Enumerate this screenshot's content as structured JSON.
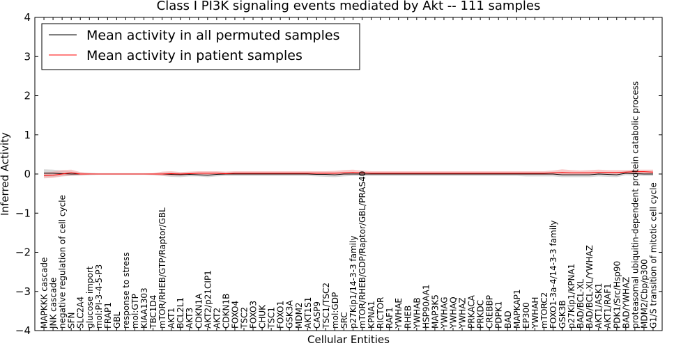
{
  "chart_data": {
    "type": "line",
    "title": "Class I PI3K signaling events mediated by Akt -- 111 samples",
    "xlabel": "Cellular Entities",
    "ylabel": "Inferred Activity",
    "ylim": [
      -4,
      4
    ],
    "yticks": [
      -4,
      -3,
      -2,
      -1,
      0,
      1,
      2,
      3,
      4
    ],
    "ytick_labels": [
      "−4",
      "−3",
      "−2",
      "−1",
      "0",
      "1",
      "2",
      "3",
      "4"
    ],
    "grid": false,
    "legend_position": "top-left",
    "categories": [
      "MAPKKK cascade",
      "JNK cascade",
      "negative regulation of cell cycle",
      "SFN",
      "SLC2A4",
      "glucose import",
      "mol:PI-3-4-5-P3",
      "FRAP1",
      "GBL",
      "response to stress",
      "mol:GTP",
      "KIAA1303",
      "TBC1D4",
      "mTOR/RHEB/GTP/Raptor/GBL",
      "AKT1",
      "BCL2L1",
      "AKT3",
      "CDKN1A",
      "AKT2/p21CIP1",
      "AKT2",
      "CDKN1B",
      "FOXO4",
      "TSC2",
      "FOXO3",
      "CHUK",
      "TSC1",
      "FOXO1",
      "GSK3A",
      "MDM2",
      "AKT1S1",
      "CASP9",
      "TSC1/TSC2",
      "mol:GDP",
      "SRC",
      "p27Kip1/14-3-3 family",
      "mTOR/RHEB/GDP/Raptor/GBL/PRAS40",
      "KPNA1",
      "RICTOR",
      "RAF1",
      "YWHAE",
      "RHEB",
      "YWHAB",
      "HSP90AA1",
      "MAP3K5",
      "YWHAG",
      "YWHAQ",
      "YWHAZ",
      "PRKACA",
      "PRKDC",
      "CREBBP",
      "PDPK1",
      "BAD",
      "MAPKAP1",
      "EP300",
      "YWHAH",
      "mTORC2",
      "FOXO1-3a-4/14-3-3 family",
      "GSK3B",
      "p27Kip1/KPNA1",
      "BAD/BCL-XL",
      "BAD/BCL-XL/YWHAZ",
      "AKT1/ASK1",
      "AKT1/RAF1",
      "PDK1/Src/Hsp90",
      "BAD/YWHAZ",
      "proteasomal ubiquitin-dependent protein catabolic process",
      "MDM2/Cbp/p300",
      "G1/S transition of mitotic cell cycle"
    ],
    "series": [
      {
        "name": "Mean activity in all permuted samples",
        "color": "#000000",
        "band_color": "#c8c8c8",
        "values": [
          0.02,
          0.02,
          0.01,
          0.0,
          0.0,
          0.0,
          0.0,
          0.0,
          0.0,
          0.0,
          0.0,
          0.0,
          0.0,
          0.0,
          -0.01,
          -0.02,
          -0.01,
          -0.02,
          -0.03,
          -0.01,
          0.0,
          0.0,
          0.0,
          0.0,
          0.0,
          0.0,
          0.0,
          0.0,
          0.0,
          0.0,
          -0.01,
          -0.01,
          -0.02,
          0.0,
          0.0,
          0.0,
          0.0,
          0.0,
          0.0,
          0.0,
          0.0,
          0.0,
          0.0,
          0.0,
          0.0,
          0.0,
          0.0,
          0.0,
          0.0,
          0.0,
          0.0,
          0.0,
          0.0,
          0.0,
          0.0,
          0.0,
          0.0,
          -0.02,
          -0.02,
          -0.02,
          -0.02,
          0.0,
          -0.01,
          -0.02,
          0.02,
          0.01,
          0.0,
          0.0
        ],
        "upper": [
          0.12,
          0.11,
          0.09,
          0.06,
          0.04,
          0.03,
          0.02,
          0.02,
          0.02,
          0.02,
          0.02,
          0.02,
          0.02,
          0.03,
          0.04,
          0.03,
          0.03,
          0.03,
          0.02,
          0.03,
          0.03,
          0.03,
          0.03,
          0.03,
          0.03,
          0.03,
          0.03,
          0.03,
          0.03,
          0.03,
          0.03,
          0.03,
          0.03,
          0.03,
          0.03,
          0.03,
          0.03,
          0.03,
          0.03,
          0.03,
          0.03,
          0.03,
          0.03,
          0.03,
          0.03,
          0.03,
          0.03,
          0.03,
          0.03,
          0.03,
          0.03,
          0.03,
          0.03,
          0.03,
          0.03,
          0.03,
          0.04,
          0.04,
          0.03,
          0.04,
          0.04,
          0.05,
          0.05,
          0.05,
          0.07,
          0.07,
          0.05,
          0.05
        ],
        "lower": [
          -0.08,
          -0.07,
          -0.06,
          -0.05,
          -0.04,
          -0.03,
          -0.02,
          -0.02,
          -0.02,
          -0.02,
          -0.02,
          -0.02,
          -0.03,
          -0.05,
          -0.07,
          -0.08,
          -0.06,
          -0.06,
          -0.08,
          -0.06,
          -0.05,
          -0.05,
          -0.05,
          -0.05,
          -0.05,
          -0.05,
          -0.05,
          -0.05,
          -0.05,
          -0.05,
          -0.06,
          -0.07,
          -0.08,
          -0.06,
          -0.05,
          -0.05,
          -0.05,
          -0.05,
          -0.05,
          -0.05,
          -0.05,
          -0.05,
          -0.05,
          -0.05,
          -0.05,
          -0.05,
          -0.05,
          -0.05,
          -0.05,
          -0.05,
          -0.05,
          -0.05,
          -0.05,
          -0.06,
          -0.06,
          -0.06,
          -0.06,
          -0.08,
          -0.08,
          -0.08,
          -0.08,
          -0.06,
          -0.07,
          -0.08,
          -0.03,
          -0.04,
          -0.05,
          -0.05
        ]
      },
      {
        "name": "Mean activity in patient samples",
        "color": "#ff0000",
        "band_color": "#f4a6a6",
        "values": [
          -0.04,
          -0.03,
          0.0,
          0.03,
          0.0,
          0.0,
          0.0,
          0.0,
          0.0,
          0.0,
          0.0,
          0.0,
          0.0,
          0.0,
          0.01,
          0.0,
          0.01,
          0.02,
          0.02,
          0.02,
          0.01,
          0.02,
          0.02,
          0.02,
          0.02,
          0.02,
          0.02,
          0.02,
          0.02,
          0.02,
          0.02,
          0.02,
          0.02,
          0.03,
          0.04,
          0.03,
          0.02,
          0.02,
          0.02,
          0.02,
          0.02,
          0.02,
          0.02,
          0.02,
          0.02,
          0.02,
          0.02,
          0.02,
          0.02,
          0.02,
          0.02,
          0.02,
          0.02,
          0.02,
          0.02,
          0.02,
          0.03,
          0.04,
          0.03,
          0.03,
          0.03,
          0.04,
          0.04,
          0.04,
          0.05,
          0.06,
          0.06,
          0.05
        ],
        "upper": [
          0.04,
          0.06,
          0.1,
          0.11,
          0.05,
          0.02,
          0.01,
          0.01,
          0.01,
          0.01,
          0.01,
          0.01,
          0.02,
          0.06,
          0.07,
          0.05,
          0.06,
          0.07,
          0.07,
          0.07,
          0.06,
          0.07,
          0.07,
          0.07,
          0.07,
          0.07,
          0.07,
          0.07,
          0.07,
          0.07,
          0.07,
          0.07,
          0.08,
          0.1,
          0.11,
          0.09,
          0.07,
          0.07,
          0.07,
          0.07,
          0.07,
          0.07,
          0.07,
          0.07,
          0.07,
          0.07,
          0.07,
          0.07,
          0.07,
          0.07,
          0.07,
          0.07,
          0.07,
          0.07,
          0.07,
          0.07,
          0.09,
          0.12,
          0.1,
          0.09,
          0.1,
          0.11,
          0.1,
          0.1,
          0.1,
          0.11,
          0.11,
          0.11
        ],
        "lower": [
          -0.11,
          -0.1,
          -0.06,
          -0.04,
          -0.03,
          -0.01,
          -0.01,
          -0.01,
          -0.01,
          -0.01,
          -0.01,
          -0.01,
          -0.02,
          -0.04,
          -0.05,
          -0.03,
          -0.02,
          -0.02,
          -0.02,
          -0.02,
          -0.02,
          -0.02,
          -0.02,
          -0.02,
          -0.02,
          -0.02,
          -0.02,
          -0.02,
          -0.02,
          -0.02,
          -0.02,
          -0.02,
          -0.02,
          -0.02,
          -0.01,
          -0.02,
          -0.02,
          -0.02,
          -0.02,
          -0.02,
          -0.02,
          -0.02,
          -0.02,
          -0.02,
          -0.02,
          -0.02,
          -0.02,
          -0.02,
          -0.02,
          -0.02,
          -0.02,
          -0.02,
          -0.02,
          -0.02,
          -0.02,
          -0.02,
          -0.02,
          -0.03,
          -0.03,
          -0.02,
          -0.02,
          -0.01,
          -0.01,
          -0.01,
          0.0,
          0.01,
          0.01,
          0.01
        ]
      }
    ]
  }
}
